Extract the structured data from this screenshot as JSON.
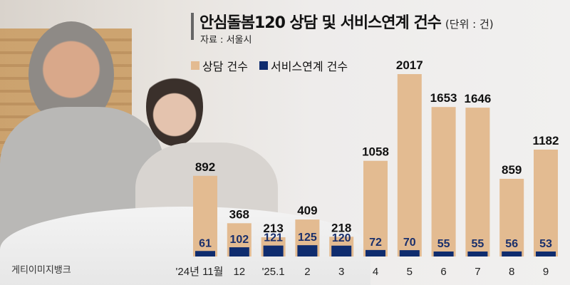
{
  "chart_data": {
    "type": "bar",
    "title": "안심돌봄120 상담 및 서비스연계 건수",
    "unit": "(단위 : 건)",
    "source": "자료 : 서울시",
    "categories": [
      "'24년 11월",
      "12",
      "'25.1",
      "2",
      "3",
      "4",
      "5",
      "6",
      "7",
      "8",
      "9"
    ],
    "series": [
      {
        "name": "상담 건수",
        "color": "#e3bb91",
        "values": [
          892,
          368,
          213,
          409,
          218,
          1058,
          2017,
          1653,
          1646,
          859,
          1182
        ]
      },
      {
        "name": "서비스연계 건수",
        "color": "#0f2c6e",
        "values": [
          61,
          102,
          121,
          125,
          120,
          72,
          70,
          55,
          55,
          56,
          53
        ]
      }
    ],
    "legend_position": "top-left",
    "grid": false
  },
  "credit": "게티이미지뱅크"
}
